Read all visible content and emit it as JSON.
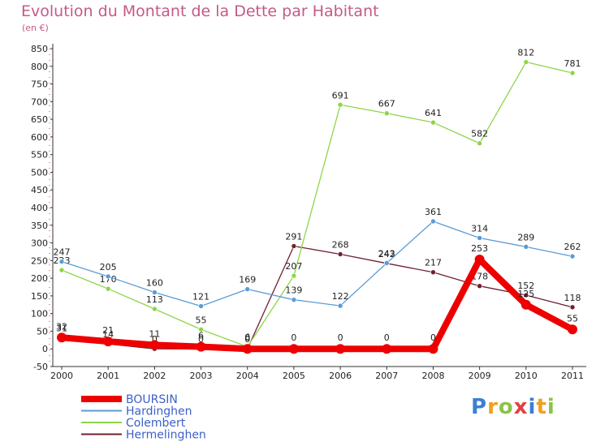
{
  "chart_data": {
    "type": "line",
    "title": "Evolution du Montant de la Dette par Habitant",
    "subtitle": "(en €)",
    "xlabel": "",
    "ylabel": "",
    "categories": [
      "2000",
      "2001",
      "2002",
      "2003",
      "2004",
      "2005",
      "2006",
      "2007",
      "2008",
      "2009",
      "2010",
      "2011"
    ],
    "ylim": [
      -50,
      850
    ],
    "yticks": [
      -50,
      0,
      50,
      100,
      150,
      200,
      250,
      300,
      350,
      400,
      450,
      500,
      550,
      600,
      650,
      700,
      750,
      800,
      850
    ],
    "grid": false,
    "legend_position": "bottom-left",
    "series": [
      {
        "name": "Hermelinghen",
        "color": "#6e2030",
        "values": [
          31,
          14,
          0,
          0,
          0,
          291,
          268,
          242,
          217,
          178,
          152,
          118
        ]
      },
      {
        "name": "Colembert",
        "color": "#8fd449",
        "values": [
          223,
          170,
          113,
          55,
          6,
          207,
          691,
          667,
          641,
          582,
          812,
          781
        ]
      },
      {
        "name": "Hardinghen",
        "color": "#5b9bd5",
        "values": [
          247,
          205,
          160,
          121,
          169,
          139,
          122,
          243,
          361,
          314,
          289,
          262
        ]
      },
      {
        "name": "BOURSIN",
        "color": "#ee0000",
        "values": [
          32,
          21,
          11,
          6,
          0,
          0,
          0,
          0,
          0,
          253,
          125,
          55
        ]
      }
    ]
  },
  "legend": {
    "items": [
      {
        "name": "BOURSIN",
        "color": "#ee0000"
      },
      {
        "name": "Hardinghen",
        "color": "#5b9bd5"
      },
      {
        "name": "Colembert",
        "color": "#8fd449"
      },
      {
        "name": "Hermelinghen",
        "color": "#6e2030"
      }
    ]
  },
  "logo": {
    "letters": [
      "P",
      "r",
      "o",
      "x",
      "i",
      "t",
      "i"
    ],
    "colors": [
      "#3a7fd5",
      "#f0a020",
      "#8bc34a",
      "#e04040",
      "#3a7fd5",
      "#f0a020",
      "#8bc34a"
    ]
  }
}
